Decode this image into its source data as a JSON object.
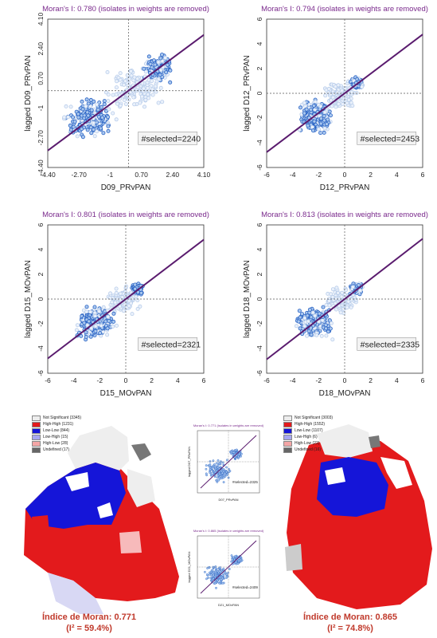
{
  "scatter_plots": [
    {
      "title": "Moran's I: 0.780 (isolates in weights are removed)",
      "xlabel": "D09_PRvPAN",
      "ylabel": "lagged D09_PRvPAN",
      "ticks": [
        "-4.40",
        "-2.70",
        "-1",
        "0.70",
        "2.40",
        "4.10"
      ],
      "selected": "#selected=2240"
    },
    {
      "title": "Moran's I: 0.794 (isolates in weights are removed)",
      "xlabel": "D12_PRvPAN",
      "ylabel": "lagged D12_PRvPAN",
      "ticks": [
        "-6",
        "-4",
        "-2",
        "0",
        "2",
        "4",
        "6"
      ],
      "selected": "#selected=2453"
    },
    {
      "title": "Moran's I: 0.801 (isolates in weights are removed)",
      "xlabel": "D15_MOvPAN",
      "ylabel": "lagged D15_MOvPAN",
      "ticks": [
        "-6",
        "-4",
        "-2",
        "0",
        "2",
        "4",
        "6"
      ],
      "selected": "#selected=2321"
    },
    {
      "title": "Moran's I: 0.813 (isolates in weights are removed)",
      "xlabel": "D18_MOvPAN",
      "ylabel": "lagged D18_MOvPAN",
      "ticks": [
        "-6",
        "-4",
        "-2",
        "0",
        "2",
        "4",
        "6"
      ],
      "selected": "#selected=2335"
    }
  ],
  "chart_data": [
    {
      "type": "scatter",
      "title": "Moran's I: 0.780 (isolates in weights are removed)",
      "xlabel": "D09_PRvPAN",
      "ylabel": "lagged D09_PRvPAN",
      "xlim": [
        -4.4,
        4.1
      ],
      "ylim": [
        -4.4,
        4.1
      ],
      "slope": 0.78
    },
    {
      "type": "scatter",
      "title": "Moran's I: 0.794 (isolates in weights are removed)",
      "xlabel": "D12_PRvPAN",
      "ylabel": "lagged D12_PRvPAN",
      "xlim": [
        -6,
        6
      ],
      "ylim": [
        -6,
        6
      ],
      "slope": 0.794
    },
    {
      "type": "scatter",
      "title": "Moran's I: 0.801 (isolates in weights are removed)",
      "xlabel": "D15_MOvPAN",
      "ylabel": "lagged D15_MOvPAN",
      "xlim": [
        -6,
        6
      ],
      "ylim": [
        -6,
        6
      ],
      "slope": 0.801
    },
    {
      "type": "scatter",
      "title": "Moran's I: 0.813 (isolates in weights are removed)",
      "xlabel": "D18_MOvPAN",
      "ylabel": "lagged D18_MOvPAN",
      "xlim": [
        -6,
        6
      ],
      "ylim": [
        -6,
        6
      ],
      "slope": 0.813
    }
  ],
  "maps": [
    {
      "legend": [
        {
          "label": "Not Significant (3345)",
          "color": "#ededed"
        },
        {
          "label": "High-High (1231)",
          "color": "#e31a1c"
        },
        {
          "label": "Low-Low (844)",
          "color": "#1515d8"
        },
        {
          "label": "Low-High (15)",
          "color": "#a6a6f0"
        },
        {
          "label": "High-Low (28)",
          "color": "#f4a6a6"
        },
        {
          "label": "Undefined (17)",
          "color": "#666666"
        }
      ],
      "caption_line1": "Índice de Moran: 0.771",
      "caption_line2": "(I² = 59.4%)"
    },
    {
      "legend": [
        {
          "label": "Not Significant (3003)",
          "color": "#ededed"
        },
        {
          "label": "High-High (1552)",
          "color": "#e31a1c"
        },
        {
          "label": "Low-Low (1107)",
          "color": "#1515d8"
        },
        {
          "label": "Low-High (6)",
          "color": "#a6a6f0"
        },
        {
          "label": "High-Low (22)",
          "color": "#f4a6a6"
        },
        {
          "label": "Undefined (16)",
          "color": "#666666"
        }
      ],
      "caption_line1": "Índice de Moran: 0.865",
      "caption_line2": "(I² = 74.8%)"
    }
  ],
  "small_plots": [
    {
      "title": "Moran's I: 0.771 (isolates in weights are removed)",
      "xlabel": "D07_PRvPAN",
      "ylabel": "lagged D07_PRvPAN",
      "selected": "#selected=2325"
    },
    {
      "title": "Moran's I: 0.865 (isolates in weights are removed)",
      "xlabel": "D21_MOvPAN",
      "ylabel": "lagged D21_MOvPAN",
      "selected": "#selected=2409"
    }
  ]
}
